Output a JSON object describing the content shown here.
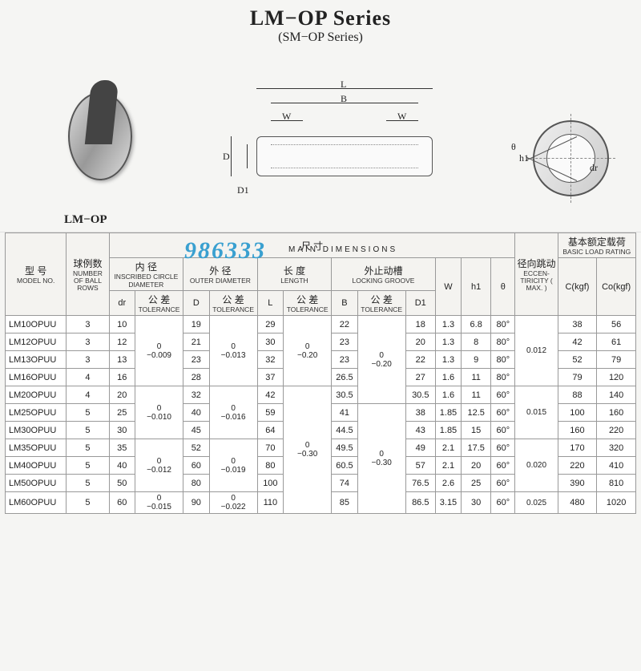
{
  "title": {
    "main": "LM−OP Series",
    "sub": "(SM−OP Series)"
  },
  "caption": "LM−OP",
  "diagram_labels": {
    "L": "L",
    "B": "B",
    "W": "W",
    "D": "D",
    "D1": "D1",
    "theta": "θ",
    "h1": "h1",
    "dr": "dr"
  },
  "watermark": "986333",
  "header": {
    "main_dims_cn": "尺 寸",
    "main_dims_en": "MAIN DIMENSIONS",
    "basic_load_cn": "基本额定载荷",
    "basic_load_en": "BASIC LOAD RATING",
    "model_cn": "型 号",
    "model_en": "MODEL NO.",
    "rows_cn": "球例数",
    "rows_en": "NUMBER OF BALL ROWS",
    "id_cn": "内 径",
    "id_en": "INSCRIBED CIRCLE DIAMETER",
    "od_cn": "外 径",
    "od_en": "OUTER DIAMETER",
    "len_cn": "长 度",
    "len_en": "LENGTH",
    "groove_cn": "外止动槽",
    "groove_en": "LOCKING GROOVE",
    "ecc_cn": "径向跳动",
    "ecc_en": "ECCEN-TIRICITY ( MAX. )",
    "W": "W",
    "h1": "h1",
    "theta": "θ",
    "C": "C(kgf)",
    "Co": "Co(kgf)",
    "dr": "dr",
    "D": "D",
    "L": "L",
    "B": "B",
    "D1": "D1",
    "tol_cn": "公 差",
    "tol_en": "TOLERANCE"
  },
  "tol": {
    "dr1": "0\n−0.009",
    "dr2": "0\n−0.010",
    "dr3": "0\n−0.012",
    "dr4": "0\n−0.015",
    "D1": "0\n−0.013",
    "D2": "0\n−0.016",
    "D3": "0\n−0.019",
    "D4": "0\n−0.022",
    "L1": "0\n−0.20",
    "L2": "0\n−0.30",
    "B1": "0\n−0.20",
    "B2": "0\n−0.30",
    "ecc1": "0.012",
    "ecc2": "0.015",
    "ecc3": "0.020",
    "ecc4": "0.025"
  },
  "rows": [
    {
      "m": "LM10OPUU",
      "n": "3",
      "dr": "10",
      "D": "19",
      "L": "29",
      "B": "22",
      "D1": "18",
      "W": "1.3",
      "h1": "6.8",
      "th": "80°",
      "C": "38",
      "Co": "56"
    },
    {
      "m": "LM12OPUU",
      "n": "3",
      "dr": "12",
      "D": "21",
      "L": "30",
      "B": "23",
      "D1": "20",
      "W": "1.3",
      "h1": "8",
      "th": "80°",
      "C": "42",
      "Co": "61"
    },
    {
      "m": "LM13OPUU",
      "n": "3",
      "dr": "13",
      "D": "23",
      "L": "32",
      "B": "23",
      "D1": "22",
      "W": "1.3",
      "h1": "9",
      "th": "80°",
      "C": "52",
      "Co": "79"
    },
    {
      "m": "LM16OPUU",
      "n": "4",
      "dr": "16",
      "D": "28",
      "L": "37",
      "B": "26.5",
      "D1": "27",
      "W": "1.6",
      "h1": "11",
      "th": "80°",
      "C": "79",
      "Co": "120"
    },
    {
      "m": "LM20OPUU",
      "n": "4",
      "dr": "20",
      "D": "32",
      "L": "42",
      "B": "30.5",
      "D1": "30.5",
      "W": "1.6",
      "h1": "11",
      "th": "60°",
      "C": "88",
      "Co": "140"
    },
    {
      "m": "LM25OPUU",
      "n": "5",
      "dr": "25",
      "D": "40",
      "L": "59",
      "B": "41",
      "D1": "38",
      "W": "1.85",
      "h1": "12.5",
      "th": "60°",
      "C": "100",
      "Co": "160"
    },
    {
      "m": "LM30OPUU",
      "n": "5",
      "dr": "30",
      "D": "45",
      "L": "64",
      "B": "44.5",
      "D1": "43",
      "W": "1.85",
      "h1": "15",
      "th": "60°",
      "C": "160",
      "Co": "220"
    },
    {
      "m": "LM35OPUU",
      "n": "5",
      "dr": "35",
      "D": "52",
      "L": "70",
      "B": "49.5",
      "D1": "49",
      "W": "2.1",
      "h1": "17.5",
      "th": "60°",
      "C": "170",
      "Co": "320"
    },
    {
      "m": "LM40OPUU",
      "n": "5",
      "dr": "40",
      "D": "60",
      "L": "80",
      "B": "60.5",
      "D1": "57",
      "W": "2.1",
      "h1": "20",
      "th": "60°",
      "C": "220",
      "Co": "410"
    },
    {
      "m": "LM50OPUU",
      "n": "5",
      "dr": "50",
      "D": "80",
      "L": "100",
      "B": "74",
      "D1": "76.5",
      "W": "2.6",
      "h1": "25",
      "th": "60°",
      "C": "390",
      "Co": "810"
    },
    {
      "m": "LM60OPUU",
      "n": "5",
      "dr": "60",
      "D": "90",
      "L": "110",
      "B": "85",
      "D1": "86.5",
      "W": "3.15",
      "h1": "30",
      "th": "60°",
      "C": "480",
      "Co": "1020"
    }
  ],
  "colwidths": [
    "66",
    "46",
    "28",
    "52",
    "28",
    "52",
    "28",
    "52",
    "28",
    "52",
    "32",
    "28",
    "32",
    "26",
    "46",
    "42",
    "42"
  ]
}
